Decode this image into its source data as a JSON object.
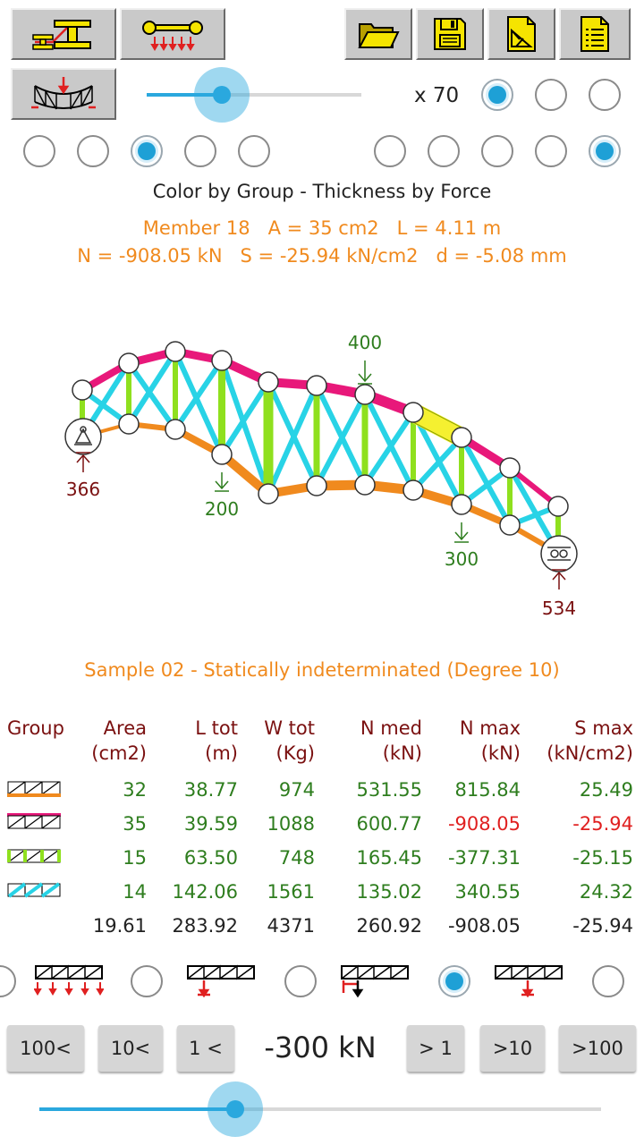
{
  "toolbar": {
    "left_buttons": [
      {
        "icon": "section-profile-icon"
      },
      {
        "icon": "distributed-load-icon"
      }
    ],
    "right_buttons": [
      {
        "icon": "open-folder-icon"
      },
      {
        "icon": "save-disk-icon"
      },
      {
        "icon": "export-document-icon"
      },
      {
        "icon": "report-list-icon"
      }
    ],
    "deformed_truss_button": {
      "icon": "deformed-truss-icon"
    }
  },
  "scale": {
    "label": "x 70",
    "slider_value": 0.38,
    "options_selected": 0
  },
  "view_options": {
    "left_group_selected": 2,
    "right_group_selected": 4,
    "left_count": 5,
    "right_count": 5
  },
  "display_mode": "Color by Group - Thickness by Force",
  "member_info": {
    "line1": "Member 18   A = 35 cm2   L = 4.11 m",
    "line2": "N = -908.05 kN   S = -25.94 kN/cm2   d = -5.08 mm"
  },
  "diagram": {
    "loads": [
      "400",
      "200",
      "300"
    ],
    "reactions": [
      "366",
      "534"
    ],
    "colors": {
      "bottom_chord": "#f08a1e",
      "top_chord": "#e8187a",
      "verticals": "#8fe01e",
      "diagonals": "#28d3e6",
      "selected": "#f5f030"
    }
  },
  "sample_title": "Sample 02 - Statically indeterminated (Degree 10)",
  "results": {
    "headers": [
      {
        "l1": "Group",
        "l2": ""
      },
      {
        "l1": "Area",
        "l2": "(cm2)"
      },
      {
        "l1": "L tot",
        "l2": "(m)"
      },
      {
        "l1": "W tot",
        "l2": "(Kg)"
      },
      {
        "l1": "N med",
        "l2": "(kN)"
      },
      {
        "l1": "N max",
        "l2": "(kN)"
      },
      {
        "l1": "S max",
        "l2": "(kN/cm2)"
      }
    ],
    "rows": [
      {
        "icon": "bottom-chord-group-icon",
        "area": "32",
        "ltot": "38.77",
        "wtot": "974",
        "nmed": "531.55",
        "nmax": "815.84",
        "smax": "25.49",
        "neg": false
      },
      {
        "icon": "top-chord-group-icon",
        "area": "35",
        "ltot": "39.59",
        "wtot": "1088",
        "nmed": "600.77",
        "nmax": "-908.05",
        "smax": "-25.94",
        "neg": true
      },
      {
        "icon": "vertical-group-icon",
        "area": "15",
        "ltot": "63.50",
        "wtot": "748",
        "nmed": "165.45",
        "nmax": "-377.31",
        "smax": "-25.15",
        "neg": false
      },
      {
        "icon": "diagonal-group-icon",
        "area": "14",
        "ltot": "142.06",
        "wtot": "1561",
        "nmed": "135.02",
        "nmax": "340.55",
        "smax": "24.32",
        "neg": false
      }
    ],
    "total": {
      "area": "19.61",
      "ltot": "283.92",
      "wtot": "4371",
      "nmed": "260.92",
      "nmax": "-908.05",
      "smax": "-25.94"
    }
  },
  "load_patterns": {
    "selected": 3
  },
  "stepper": {
    "buttons": [
      "100<",
      "10<",
      "1 <",
      "> 1",
      ">10",
      ">100"
    ],
    "value": "-300 kN",
    "slider_value": 0.35
  }
}
